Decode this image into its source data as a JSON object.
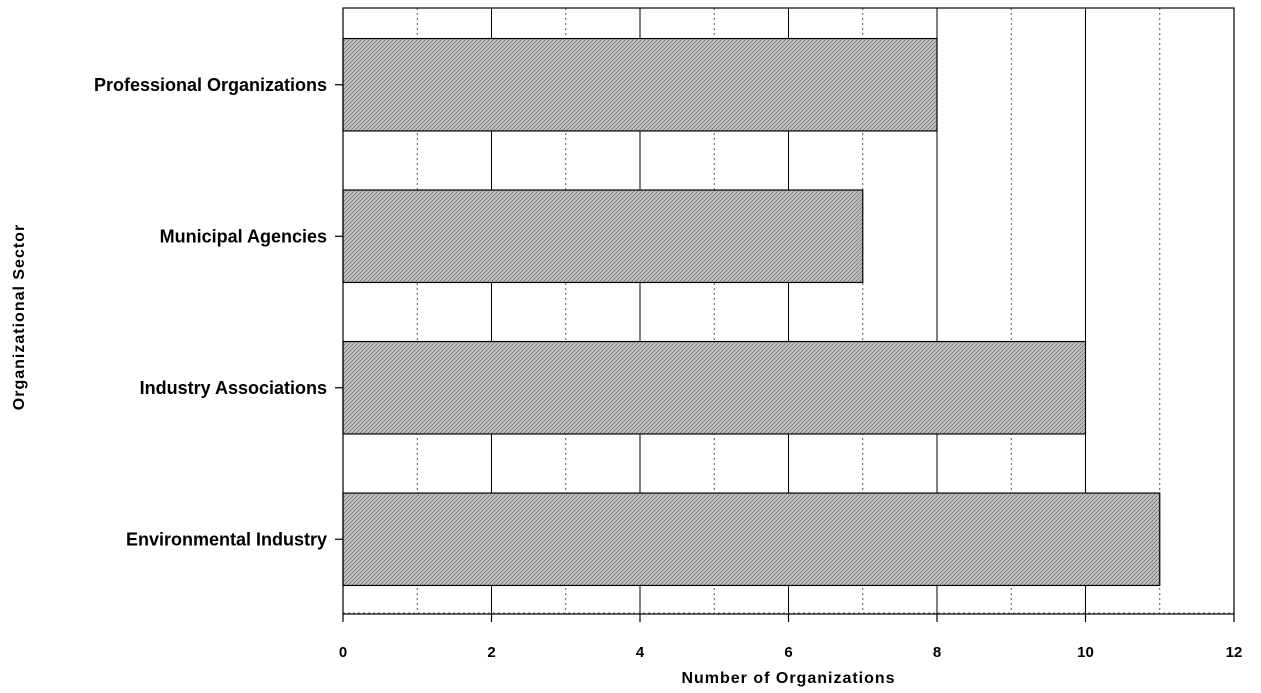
{
  "chart_data": {
    "type": "bar",
    "orientation": "horizontal",
    "title": "",
    "xlabel": "Number of Organizations",
    "ylabel": "Organizational Sector",
    "categories": [
      "Professional Organizations",
      "Municipal Agencies",
      "Industry Associations",
      "Environmental Industry"
    ],
    "values": [
      8,
      7,
      10,
      11
    ],
    "xlim": [
      0,
      12
    ],
    "xticks": [
      "0",
      "2",
      "4",
      "6",
      "8",
      "10",
      "12"
    ],
    "grid": "major solid, minor dotted",
    "bar_color": "#a8a8a8"
  }
}
